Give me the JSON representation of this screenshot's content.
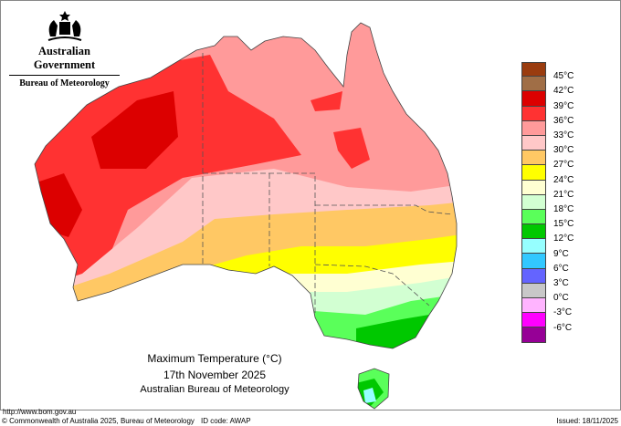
{
  "logo": {
    "line1": "Australian Government",
    "line2": "Bureau of Meteorology"
  },
  "map": {
    "title": "Maximum Temperature (°C)",
    "date": "17th November 2025",
    "agency": "Australian Bureau of Meteorology"
  },
  "legend": {
    "colors": [
      "#9a3c0f",
      "#a06e46",
      "#dc0000",
      "#ff3232",
      "#ff9a9a",
      "#ffc8c8",
      "#ffc864",
      "#ffff00",
      "#ffffd2",
      "#d2ffd2",
      "#5aff5a",
      "#00c800",
      "#96ffff",
      "#32c8ff",
      "#6464ff",
      "#c8c8c8",
      "#ffb4ff",
      "#ff00ff",
      "#960096"
    ],
    "labels": [
      "45°C",
      "42°C",
      "39°C",
      "36°C",
      "33°C",
      "30°C",
      "27°C",
      "24°C",
      "21°C",
      "18°C",
      "15°C",
      "12°C",
      "9°C",
      "6°C",
      "3°C",
      "0°C",
      "-3°C",
      "-6°C"
    ]
  },
  "footer": {
    "url": "http://www.bom.gov.au",
    "copyright": "© Commonwealth of Australia 2025, Bureau of Meteorology",
    "id_code": "ID code: AWAP",
    "issued": "Issued: 18/11/2025"
  }
}
